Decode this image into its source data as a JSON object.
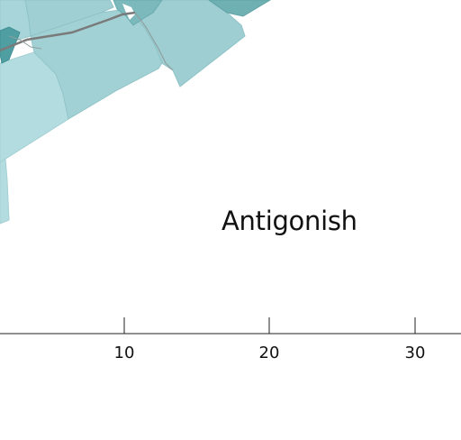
{
  "map": {
    "place_label": "Antigonish",
    "colors": {
      "region_light": "#b4dde1",
      "region_mid": "#9fcfd3",
      "region_dark": "#6fb1b4",
      "region_darker": "#4a9a9e",
      "road": "#7a7a7a",
      "background": "#ffffff"
    }
  },
  "scale_bar": {
    "ticks": [
      "10",
      "20",
      "30"
    ]
  }
}
